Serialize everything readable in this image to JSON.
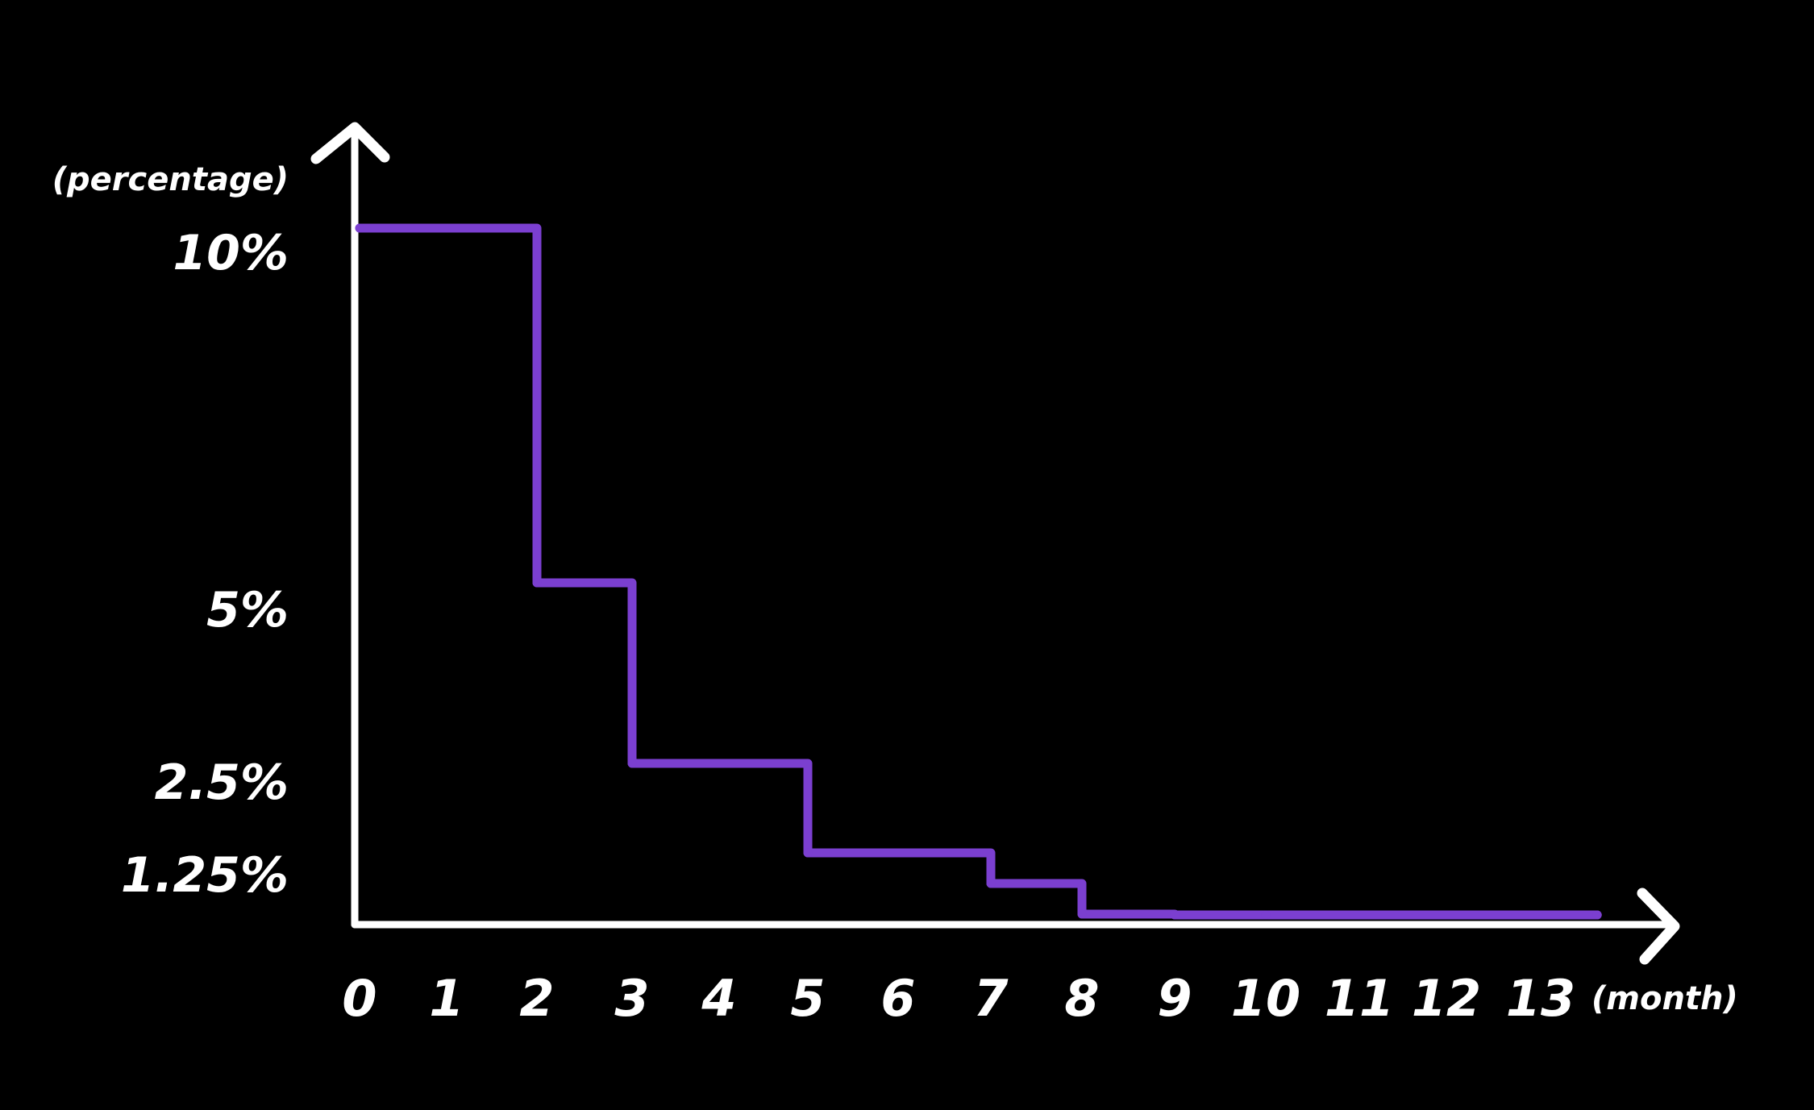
{
  "chart_data": {
    "type": "line",
    "step": true,
    "ylabel": "(percentage)",
    "xlabel": "(month)",
    "x_ticks": [
      "0",
      "1",
      "2",
      "3",
      "4",
      "5",
      "6",
      "7",
      "8",
      "9",
      "10",
      "11",
      "12",
      "13"
    ],
    "y_ticks": [
      {
        "value": 10,
        "label": "10%"
      },
      {
        "value": 5,
        "label": "5%"
      },
      {
        "value": 2.5,
        "label": "2.5%"
      },
      {
        "value": 1.25,
        "label": "1.25%"
      }
    ],
    "series": [
      {
        "color": "#7b3fd0",
        "points": [
          {
            "month": 0,
            "value": 10
          },
          {
            "month": 2,
            "value": 5
          },
          {
            "month": 3,
            "value": 2.5
          },
          {
            "month": 5,
            "value": 1.25
          },
          {
            "month": 7,
            "value": 0.625
          },
          {
            "month": 8,
            "value": 0.3125
          },
          {
            "month": 9,
            "value": 0.156
          },
          {
            "month": 10,
            "value": 0.078
          },
          {
            "month": 13.6,
            "value": 0.078
          }
        ]
      }
    ],
    "grid": false,
    "axis_color": "#ffffff",
    "background": "#000000"
  }
}
